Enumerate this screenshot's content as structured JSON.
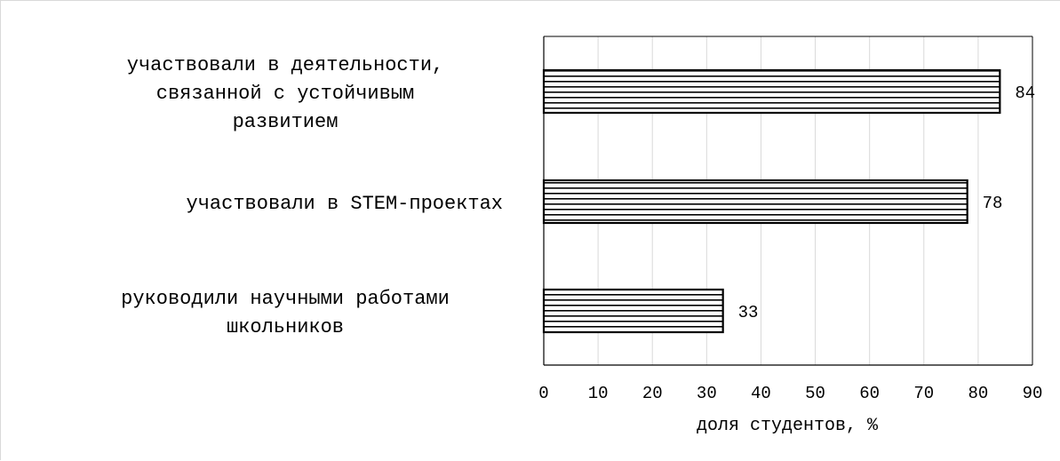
{
  "chart_data": {
    "type": "bar",
    "orientation": "horizontal",
    "categories": [
      [
        "участвовали в деятельности,",
        "связанной с устойчивым",
        "развитием"
      ],
      [
        "участвовали в STEM-проектах"
      ],
      [
        "руководили научными работами",
        "школьников"
      ]
    ],
    "values": [
      84,
      78,
      33
    ],
    "data_labels": [
      "84",
      "78",
      "33"
    ],
    "xlabel": "доля студентов, %",
    "xlim": [
      0,
      90
    ],
    "xticks": [
      0,
      10,
      20,
      30,
      40,
      50,
      60,
      70,
      80,
      90
    ],
    "grid": "vertical",
    "bar_fill": "horizontal-stripes",
    "colors": {
      "bar_stroke": "#000000",
      "stripe": "#000000",
      "grid": "#d9d9d9",
      "axis": "#000000",
      "text": "#000000"
    }
  }
}
